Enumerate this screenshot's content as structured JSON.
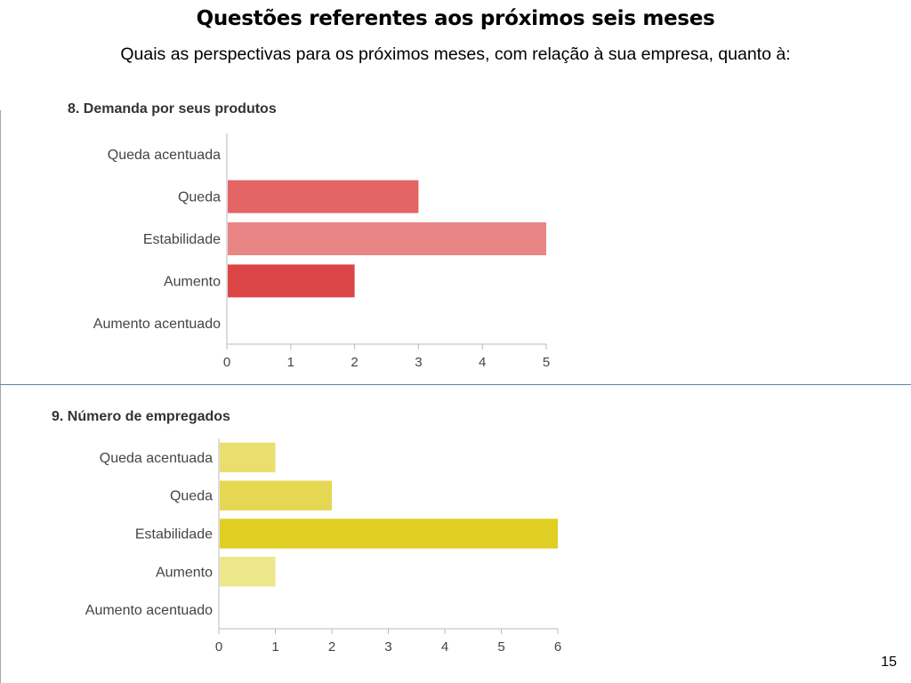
{
  "slide": {
    "title": "Questões referentes aos próximos seis meses",
    "subtitle": "Quais as perspectivas para os próximos meses, com relação à sua empresa, quanto à:",
    "page_number": "15"
  },
  "chart_data": [
    {
      "type": "bar",
      "orientation": "horizontal",
      "title": "8. Demanda por seus produtos",
      "categories": [
        "Queda acentuada",
        "Queda",
        "Estabilidade",
        "Aumento",
        "Aumento acentuado"
      ],
      "values": [
        0,
        3,
        5,
        2,
        0
      ],
      "colors": [
        "#e36565",
        "#e36565",
        "#e98585",
        "#dc4545",
        "#e36565"
      ],
      "xlim": [
        0,
        5
      ],
      "xticks": [
        0,
        1,
        2,
        3,
        4,
        5
      ],
      "grid": false,
      "legend": "none"
    },
    {
      "type": "bar",
      "orientation": "horizontal",
      "title": "9. Número de empregados",
      "categories": [
        "Queda acentuada",
        "Queda",
        "Estabilidade",
        "Aumento",
        "Aumento acentuado"
      ],
      "values": [
        1,
        2,
        6,
        1,
        0
      ],
      "colors": [
        "#e9de6e",
        "#e6d752",
        "#e0ce23",
        "#ede68a",
        "#e9de6e"
      ],
      "xlim": [
        0,
        6
      ],
      "xticks": [
        0,
        1,
        2,
        3,
        4,
        5,
        6
      ],
      "grid": false,
      "legend": "none"
    }
  ]
}
